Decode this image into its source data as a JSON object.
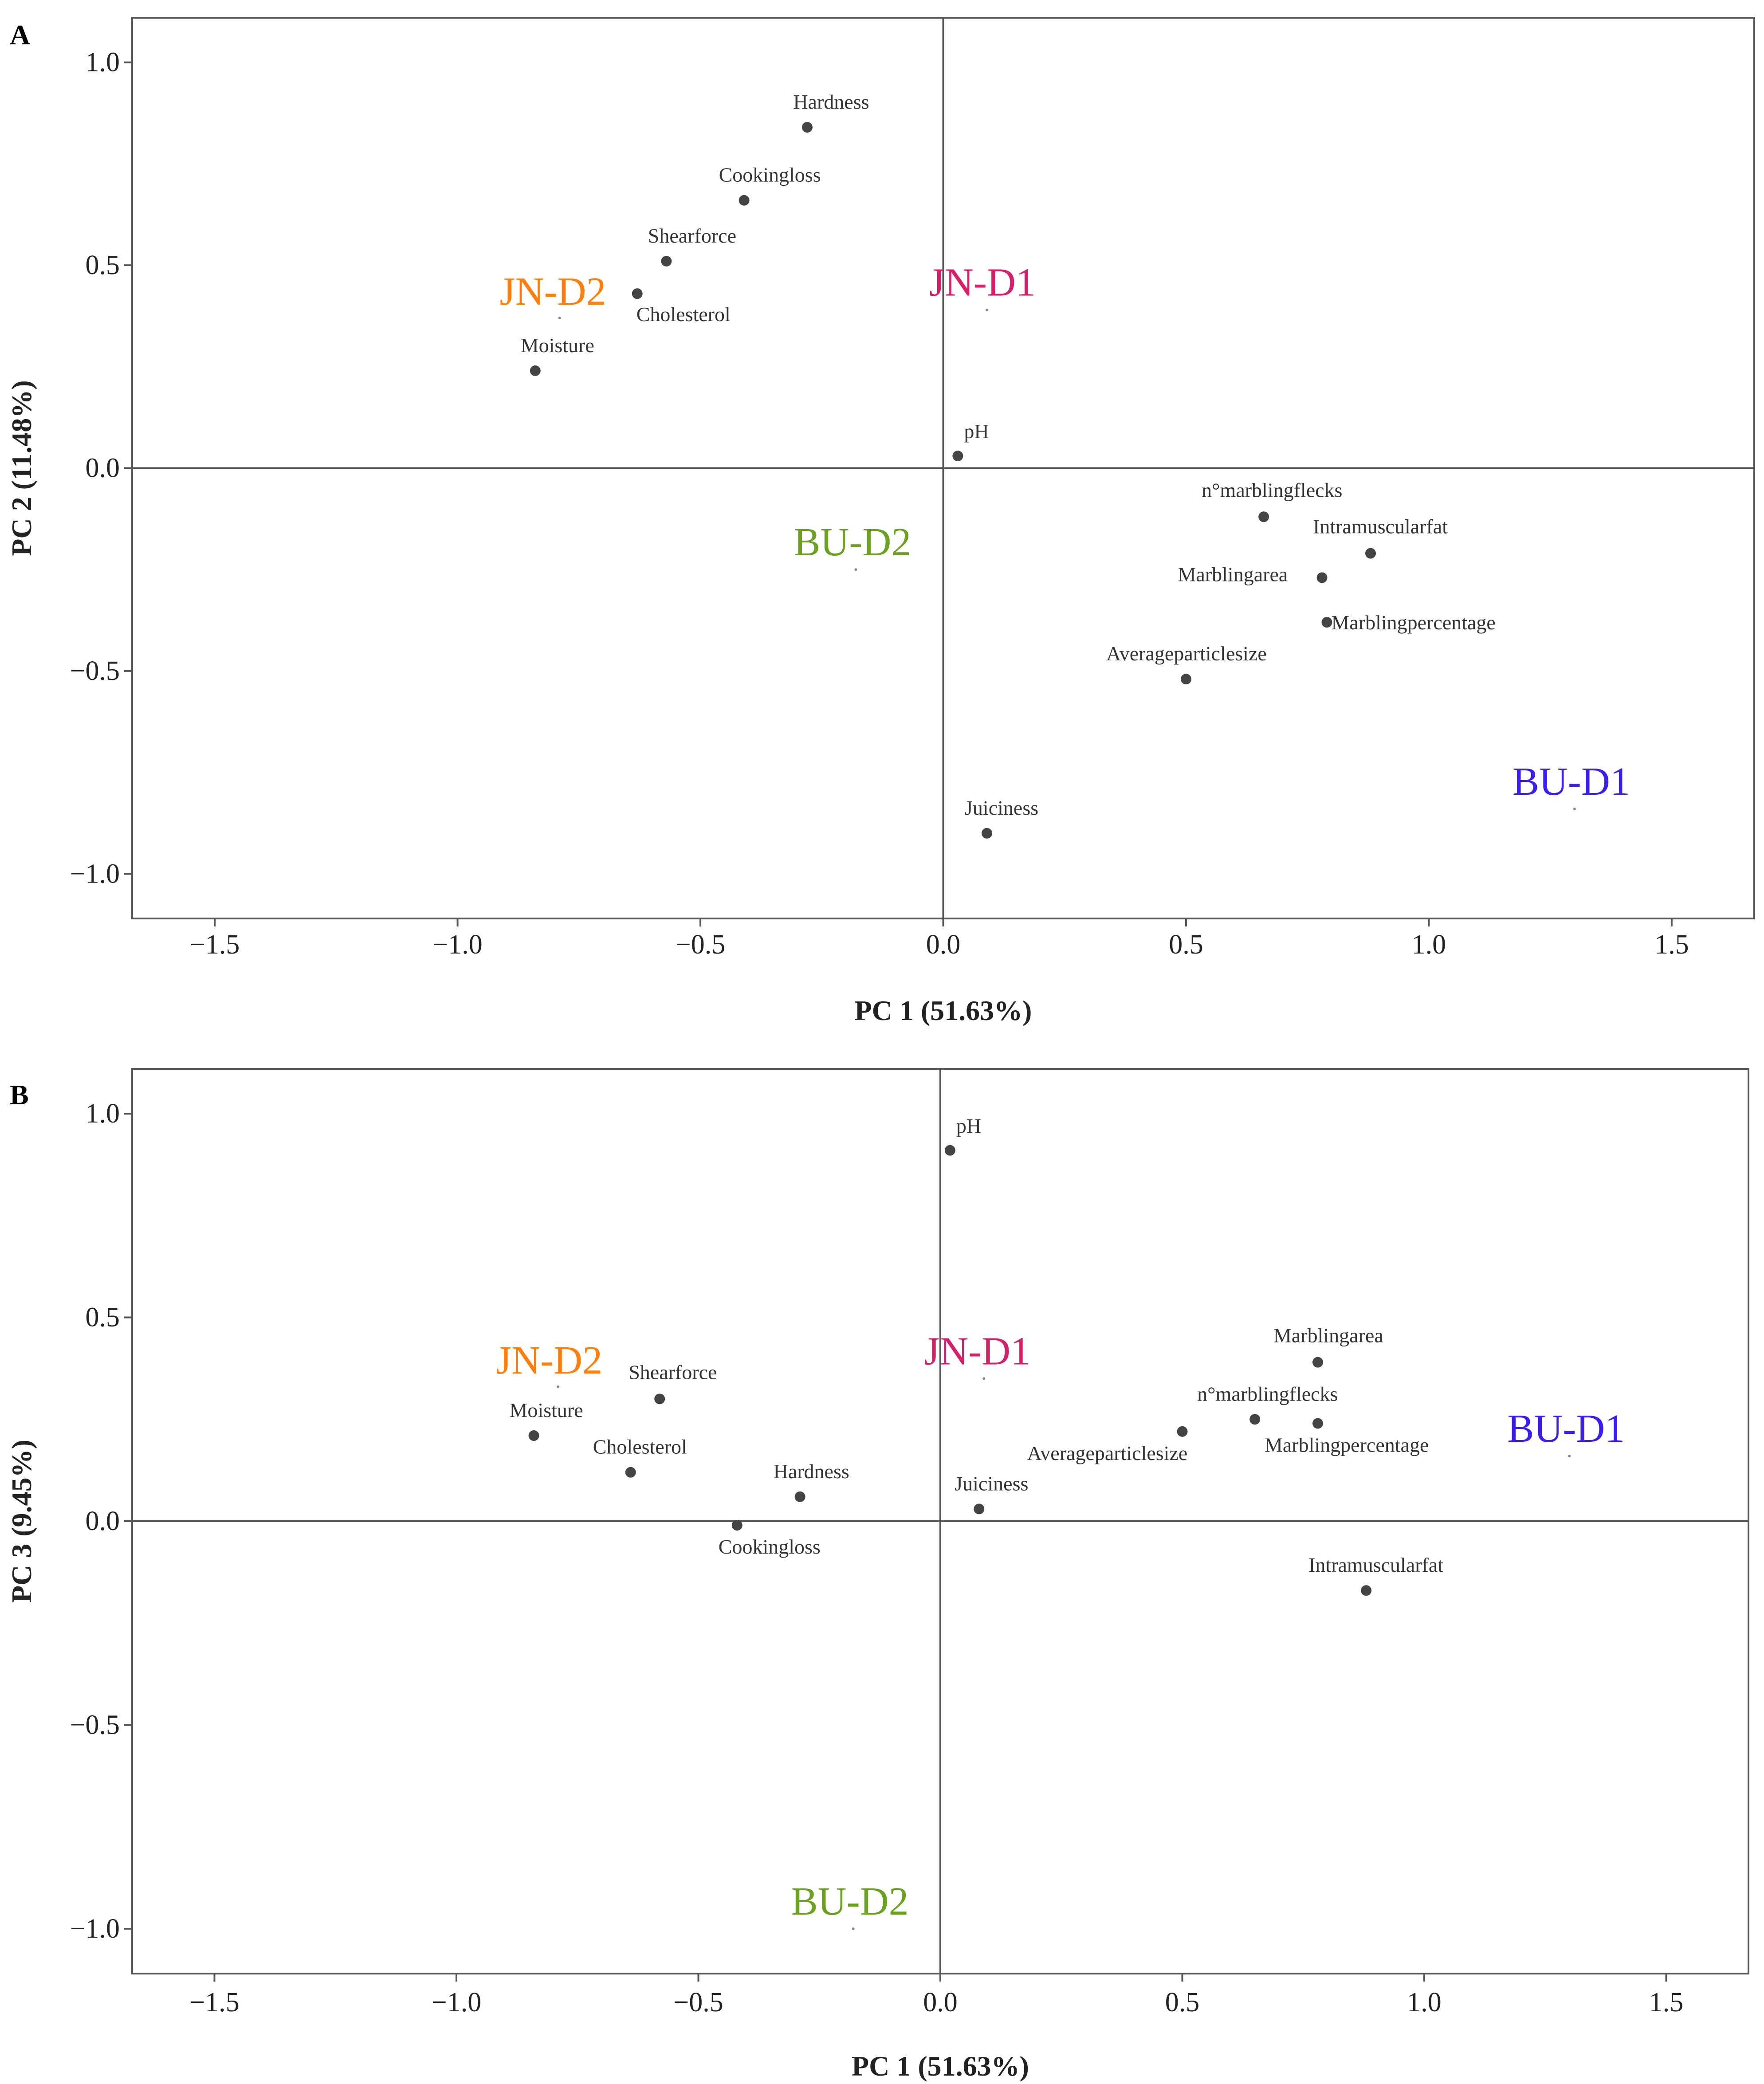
{
  "chart_data": [
    {
      "type": "scatter",
      "panel": "A",
      "xlabel": "PC 1 (51.63%)",
      "ylabel": "PC 2 (11.48%)",
      "xlim": [
        -1.67,
        1.67
      ],
      "ylim": [
        -1.11,
        1.11
      ],
      "xticks": [
        -1.5,
        -1.0,
        -0.5,
        0.0,
        0.5,
        1.0,
        1.5
      ],
      "yticks": [
        -1.0,
        -0.5,
        0.0,
        0.5,
        1.0
      ],
      "grid": false,
      "variables": [
        {
          "name": "Hardness",
          "x": -0.28,
          "y": 0.84
        },
        {
          "name": "Cookingloss",
          "x": -0.41,
          "y": 0.66
        },
        {
          "name": "Shearforce",
          "x": -0.57,
          "y": 0.51
        },
        {
          "name": "Cholesterol",
          "x": -0.63,
          "y": 0.43
        },
        {
          "name": "Moisture",
          "x": -0.84,
          "y": 0.24
        },
        {
          "name": "pH",
          "x": 0.03,
          "y": 0.03
        },
        {
          "name": "n°marblingflecks",
          "x": 0.66,
          "y": -0.12
        },
        {
          "name": "Intramuscularfat",
          "x": 0.88,
          "y": -0.21
        },
        {
          "name": "Marblingarea",
          "x": 0.78,
          "y": -0.27
        },
        {
          "name": "Marblingpercentage",
          "x": 0.79,
          "y": -0.38
        },
        {
          "name": "Averageparticlesize",
          "x": 0.5,
          "y": -0.52
        },
        {
          "name": "Juiciness",
          "x": 0.09,
          "y": -0.9
        }
      ],
      "groups": [
        {
          "name": "JN-D2",
          "x": -0.79,
          "y": 0.37,
          "color": "#ff7f0e"
        },
        {
          "name": "JN-D1",
          "x": 0.09,
          "y": 0.39,
          "color": "#d61f69"
        },
        {
          "name": "BU-D2",
          "x": -0.18,
          "y": -0.25,
          "color": "#6aa121"
        },
        {
          "name": "BU-D1",
          "x": 1.3,
          "y": -0.84,
          "color": "#3a1ef0"
        }
      ]
    },
    {
      "type": "scatter",
      "panel": "B",
      "xlabel": "PC 1 (51.63%)",
      "ylabel": "PC 3 (9.45%)",
      "xlim": [
        -1.67,
        1.67
      ],
      "ylim": [
        -1.11,
        1.11
      ],
      "xticks": [
        -1.5,
        -1.0,
        -0.5,
        0.0,
        0.5,
        1.0,
        1.5
      ],
      "yticks": [
        -1.0,
        -0.5,
        0.0,
        0.5,
        1.0
      ],
      "grid": false,
      "variables": [
        {
          "name": "pH",
          "x": 0.02,
          "y": 0.91
        },
        {
          "name": "Marblingarea",
          "x": 0.78,
          "y": 0.39
        },
        {
          "name": "Shearforce",
          "x": -0.58,
          "y": 0.3
        },
        {
          "name": "n°marblingflecks",
          "x": 0.65,
          "y": 0.25
        },
        {
          "name": "Moisture",
          "x": -0.84,
          "y": 0.21
        },
        {
          "name": "Averageparticlesize",
          "x": 0.5,
          "y": 0.22
        },
        {
          "name": "Marblingpercentage",
          "x": 0.78,
          "y": 0.24
        },
        {
          "name": "Cholesterol",
          "x": -0.64,
          "y": 0.12
        },
        {
          "name": "Hardness",
          "x": -0.29,
          "y": 0.06
        },
        {
          "name": "Juiciness",
          "x": 0.08,
          "y": 0.03
        },
        {
          "name": "Cookingloss",
          "x": -0.42,
          "y": -0.01
        },
        {
          "name": "Intramuscularfat",
          "x": 0.88,
          "y": -0.17
        }
      ],
      "groups": [
        {
          "name": "JN-D2",
          "x": -0.79,
          "y": 0.33,
          "color": "#ff7f0e"
        },
        {
          "name": "JN-D1",
          "x": 0.09,
          "y": 0.35,
          "color": "#d61f69"
        },
        {
          "name": "BU-D2",
          "x": -0.18,
          "y": -1.0,
          "color": "#6aa121"
        },
        {
          "name": "BU-D1",
          "x": 1.3,
          "y": 0.16,
          "color": "#3a1ef0"
        }
      ]
    }
  ]
}
